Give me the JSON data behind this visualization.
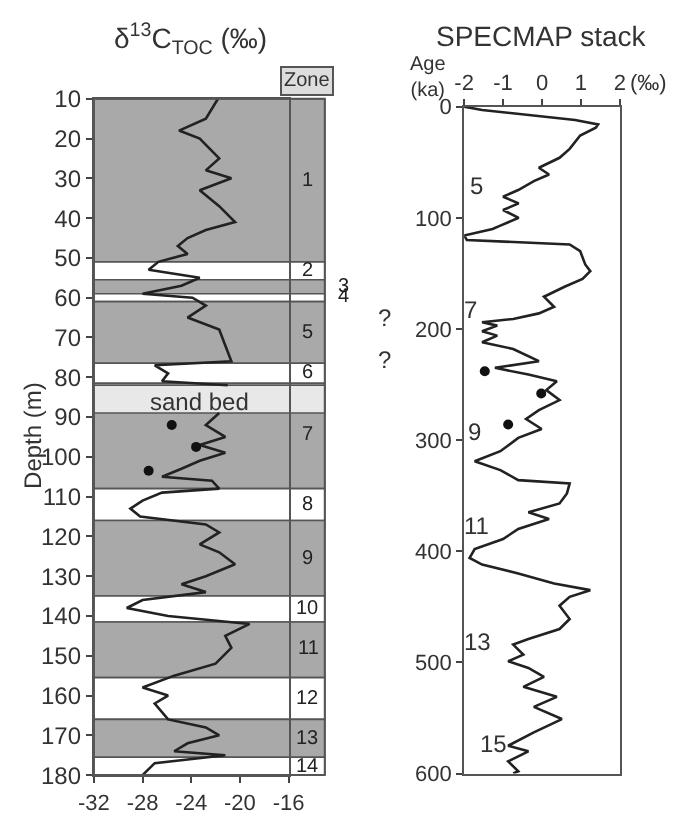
{
  "chart_data": [
    {
      "type": "line",
      "title": "δ$^{13}$C$_{TOC}$ (‰)",
      "ylabel": "Depth (m)",
      "orientation": "horizontal",
      "xlim": [
        -32,
        -16
      ],
      "xticks": [
        -32,
        -28,
        -24,
        -20,
        -16
      ],
      "ylim": [
        180,
        10
      ],
      "yticks": [
        10,
        20,
        30,
        40,
        50,
        60,
        70,
        80,
        90,
        100,
        110,
        120,
        130,
        140,
        150,
        160,
        170,
        180
      ],
      "grid": false,
      "marker": "none",
      "line_style": "solid",
      "series": [
        {
          "color": "#222222",
          "x": [
            10,
            15,
            18,
            20,
            25,
            28,
            30,
            33,
            37,
            41,
            43,
            45,
            47,
            49,
            51,
            53,
            55,
            57,
            59,
            60,
            62,
            65,
            68,
            72,
            76,
            77,
            79,
            81,
            82,
            85,
            89,
            92,
            95,
            97,
            99,
            101,
            103,
            105,
            106,
            108,
            109,
            111,
            113,
            115,
            117,
            119,
            122,
            124,
            127,
            130,
            132,
            134,
            136,
            138,
            140,
            142,
            145,
            148,
            152,
            155,
            158,
            160,
            162,
            166,
            168,
            170,
            172,
            174,
            175,
            177,
            180
          ],
          "values": [
            -21.8,
            -22.8,
            -25.0,
            -23.3,
            -21.7,
            -22.8,
            -20.7,
            -23.3,
            -21.7,
            -20.4,
            -22.8,
            -24.3,
            -25.1,
            -24.3,
            -26.7,
            -27.5,
            -23.3,
            -24.8,
            -28.0,
            -23.9,
            -22.8,
            -24.3,
            -21.7,
            -21.2,
            -20.7,
            -27.0,
            -25.9,
            -26.4,
            -21.0,
            null,
            -21.7,
            -22.8,
            -21.2,
            -23.3,
            -21.2,
            -23.3,
            -24.8,
            -26.4,
            -22.3,
            -21.7,
            -26.4,
            -28.0,
            -29.0,
            -28.2,
            -22.8,
            -21.7,
            -23.3,
            -21.7,
            -20.4,
            -22.8,
            -24.8,
            -22.8,
            -28.0,
            -29.3,
            -25.9,
            -19.2,
            -21.2,
            -20.7,
            -22.0,
            -25.4,
            -28.0,
            -25.9,
            -27.0,
            -25.9,
            -22.8,
            -21.7,
            -24.3,
            -25.4,
            -21.2,
            -27.0,
            -28.0
          ]
        },
        {
          "type": "scatter",
          "marker": "circle",
          "color": "#111111",
          "x": [
            92,
            97.5,
            103.5
          ],
          "values": [
            -25.6,
            -23.6,
            -27.5
          ]
        }
      ],
      "bands": [
        {
          "axis": "y",
          "from": 10,
          "to": 51,
          "label": "1",
          "color": "#a9a9a9"
        },
        {
          "axis": "y",
          "from": 51,
          "to": 55.5,
          "label": "2",
          "color": "#ffffff"
        },
        {
          "axis": "y",
          "from": 55.5,
          "to": 59,
          "label": "3",
          "color": "#a9a9a9"
        },
        {
          "axis": "y",
          "from": 59,
          "to": 61,
          "label": "4",
          "color": "#ffffff"
        },
        {
          "axis": "y",
          "from": 61,
          "to": 76.5,
          "label": "5",
          "color": "#a9a9a9"
        },
        {
          "axis": "y",
          "from": 76.5,
          "to": 81.5,
          "label": "6",
          "color": "#ffffff"
        },
        {
          "axis": "y",
          "from": 81.5,
          "to": 108,
          "label": "7",
          "color": "#a9a9a9"
        },
        {
          "axis": "y",
          "from": 82,
          "to": 89,
          "label": null,
          "color": "#e8e8e8"
        },
        {
          "axis": "y",
          "from": 108,
          "to": 116,
          "label": "8",
          "color": "#ffffff"
        },
        {
          "axis": "y",
          "from": 116,
          "to": 135,
          "label": "9",
          "color": "#a9a9a9"
        },
        {
          "axis": "y",
          "from": 135,
          "to": 141.5,
          "label": "10",
          "color": "#ffffff"
        },
        {
          "axis": "y",
          "from": 141.5,
          "to": 155.5,
          "label": "11",
          "color": "#a9a9a9"
        },
        {
          "axis": "y",
          "from": 155.5,
          "to": 166,
          "label": "12",
          "color": "#ffffff"
        },
        {
          "axis": "y",
          "from": 166,
          "to": 175.5,
          "label": "13",
          "color": "#a9a9a9"
        },
        {
          "axis": "y",
          "from": 175.5,
          "to": 180,
          "label": "14",
          "color": "#ffffff"
        }
      ],
      "annotations": [
        "Zone",
        "sand bed"
      ]
    },
    {
      "type": "line",
      "title": "SPECMAP stack",
      "ylabel": "Age\n(ka)",
      "xlabel": "(‰)",
      "orientation": "horizontal",
      "xlim": [
        -2,
        2
      ],
      "xticks": [
        -2,
        -1,
        0,
        1,
        2
      ],
      "ylim": [
        600,
        0
      ],
      "yticks": [
        0,
        100,
        200,
        300,
        400,
        500,
        600
      ],
      "grid": false,
      "marker": "none",
      "line_style": "solid",
      "series": [
        {
          "color": "#222222",
          "x": [
            0,
            3,
            12,
            16,
            19,
            26,
            38,
            46,
            55,
            61,
            67,
            75,
            81,
            87,
            93,
            100,
            107,
            110,
            116,
            120,
            124,
            130,
            142,
            148,
            155,
            162,
            171,
            180,
            186,
            191,
            194,
            197,
            202,
            206,
            212,
            218,
            229,
            235,
            241,
            247,
            255,
            264,
            273,
            281,
            290,
            298,
            310,
            319,
            327,
            336,
            339,
            348,
            357,
            365,
            371,
            380,
            389,
            398,
            406,
            412,
            420,
            429,
            435,
            441,
            449,
            461,
            470,
            479,
            484,
            493,
            499,
            505,
            513,
            522,
            531,
            540,
            551,
            563,
            575,
            580,
            589,
            598,
            600
          ],
          "values": [
            -2.0,
            -1.54,
            0.85,
            1.44,
            1.38,
            0.98,
            0.71,
            0.45,
            -0.08,
            0.18,
            -0.21,
            -0.61,
            -1.0,
            -0.6,
            -1.0,
            -0.6,
            -1.07,
            -1.27,
            -2.0,
            -1.93,
            0.71,
            0.98,
            1.11,
            1.24,
            1.04,
            0.58,
            0.05,
            0.31,
            -0.08,
            -0.74,
            -1.54,
            -1.15,
            -1.54,
            -1.15,
            -1.54,
            -0.74,
            -0.08,
            -1.21,
            -0.35,
            0.38,
            0.11,
            0.45,
            -0.08,
            -0.41,
            -0.01,
            -0.61,
            -1.07,
            -1.73,
            -1.07,
            -0.61,
            0.71,
            0.64,
            0.45,
            -0.35,
            0.18,
            -0.61,
            -1.0,
            -1.73,
            -1.86,
            -1.54,
            -0.61,
            0.31,
            1.24,
            0.71,
            0.45,
            0.71,
            0.45,
            -0.35,
            -0.74,
            -0.48,
            -0.87,
            -0.35,
            0.05,
            -0.48,
            0.38,
            -0.21,
            0.51,
            -0.21,
            -0.87,
            -0.35,
            -0.87,
            -0.61,
            -0.74
          ]
        },
        {
          "type": "scatter",
          "marker": "circle",
          "color": "#111111",
          "x": [
            238,
            258,
            286
          ],
          "values": [
            -1.47,
            -0.02,
            -0.87
          ]
        }
      ],
      "annotations": [
        "?",
        "?",
        "5",
        "7",
        "9",
        "11",
        "13",
        "15"
      ]
    }
  ]
}
